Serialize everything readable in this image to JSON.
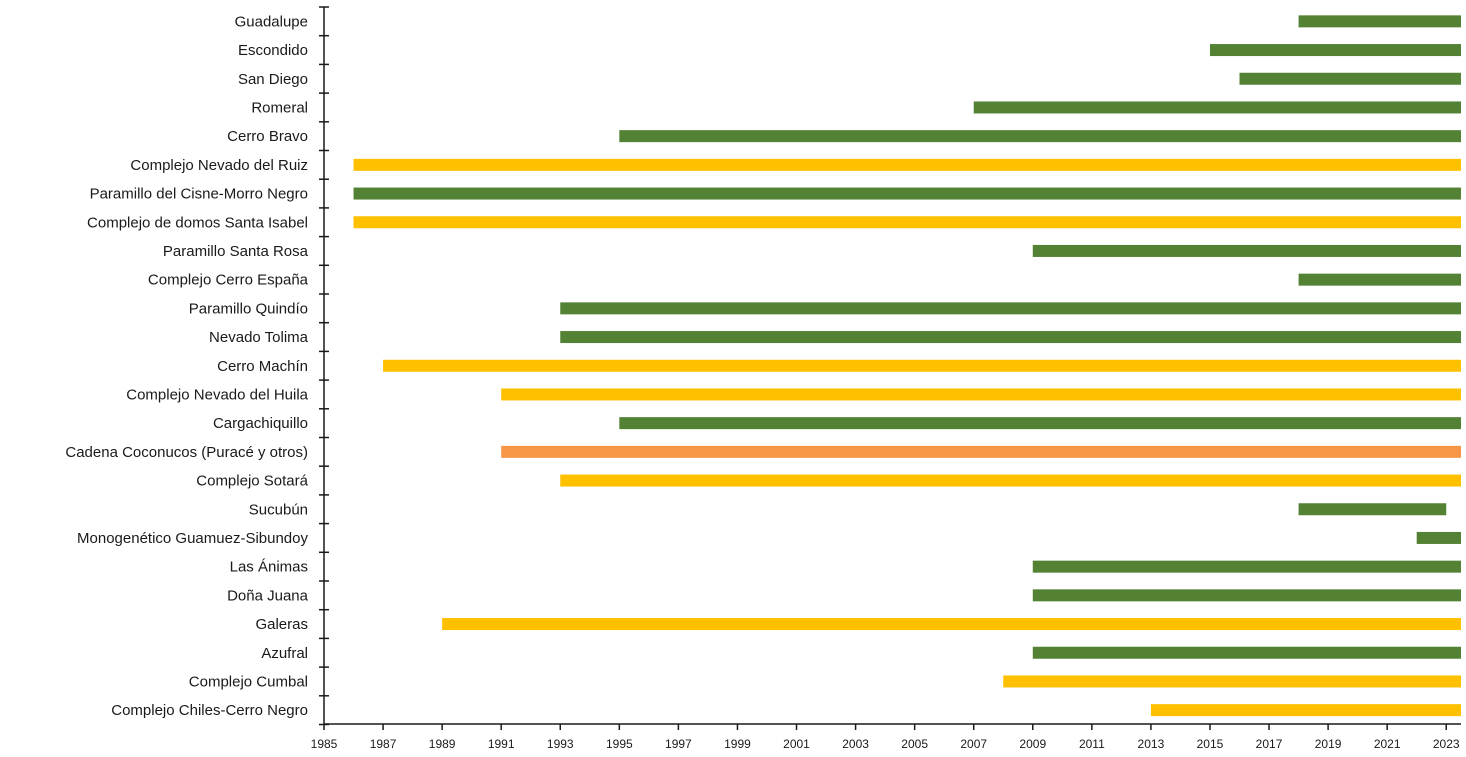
{
  "chart_data": {
    "type": "bar",
    "orientation": "horizontal",
    "title": "",
    "xlabel": "",
    "ylabel": "",
    "xlim": [
      1985,
      2023.5
    ],
    "x_ticks": [
      1985,
      1987,
      1989,
      1991,
      1993,
      1995,
      1997,
      1999,
      2001,
      2003,
      2005,
      2007,
      2009,
      2011,
      2013,
      2015,
      2017,
      2019,
      2021,
      2023
    ],
    "grid": false,
    "legend": "none",
    "colors": {
      "green": "#548235",
      "yellow": "#FFC000",
      "orange": "#F79646"
    },
    "bars": [
      {
        "label": "Guadalupe",
        "start": 2018,
        "end": 2023.5,
        "color": "green"
      },
      {
        "label": "Escondido",
        "start": 2015,
        "end": 2023.5,
        "color": "green"
      },
      {
        "label": "San Diego",
        "start": 2016,
        "end": 2023.5,
        "color": "green"
      },
      {
        "label": "Romeral",
        "start": 2007,
        "end": 2023.5,
        "color": "green"
      },
      {
        "label": "Cerro Bravo",
        "start": 1995,
        "end": 2023.5,
        "color": "green"
      },
      {
        "label": "Complejo Nevado del Ruiz",
        "start": 1986,
        "end": 2023.5,
        "color": "yellow"
      },
      {
        "label": "Paramillo del Cisne-Morro Negro",
        "start": 1986,
        "end": 2023.5,
        "color": "green"
      },
      {
        "label": "Complejo de domos Santa Isabel",
        "start": 1986,
        "end": 2023.5,
        "color": "yellow"
      },
      {
        "label": "Paramillo Santa Rosa",
        "start": 2009,
        "end": 2023.5,
        "color": "green"
      },
      {
        "label": "Complejo Cerro España",
        "start": 2018,
        "end": 2023.5,
        "color": "green"
      },
      {
        "label": "Paramillo Quindío",
        "start": 1993,
        "end": 2023.5,
        "color": "green"
      },
      {
        "label": "Nevado Tolima",
        "start": 1993,
        "end": 2023.5,
        "color": "green"
      },
      {
        "label": "Cerro Machín",
        "start": 1987,
        "end": 2023.5,
        "color": "yellow"
      },
      {
        "label": "Complejo Nevado del Huila",
        "start": 1991,
        "end": 2023.5,
        "color": "yellow"
      },
      {
        "label": "Cargachiquillo",
        "start": 1995,
        "end": 2023.5,
        "color": "green"
      },
      {
        "label": "Cadena Coconucos (Puracé y otros)",
        "start": 1991,
        "end": 2023.5,
        "color": "orange"
      },
      {
        "label": "Complejo Sotará",
        "start": 1993,
        "end": 2023.5,
        "color": "yellow"
      },
      {
        "label": "Sucubún",
        "start": 2018,
        "end": 2023,
        "color": "green"
      },
      {
        "label": "Monogenético Guamuez-Sibundoy",
        "start": 2022,
        "end": 2023.5,
        "color": "green"
      },
      {
        "label": "Las Ánimas",
        "start": 2009,
        "end": 2023.5,
        "color": "green"
      },
      {
        "label": "Doña Juana",
        "start": 2009,
        "end": 2023.5,
        "color": "green"
      },
      {
        "label": "Galeras",
        "start": 1989,
        "end": 2023.5,
        "color": "yellow"
      },
      {
        "label": "Azufral",
        "start": 2009,
        "end": 2023.5,
        "color": "green"
      },
      {
        "label": "Complejo Cumbal",
        "start": 2008,
        "end": 2023.5,
        "color": "yellow"
      },
      {
        "label": "Complejo Chiles-Cerro Negro",
        "start": 2013,
        "end": 2023.5,
        "color": "yellow"
      }
    ]
  }
}
